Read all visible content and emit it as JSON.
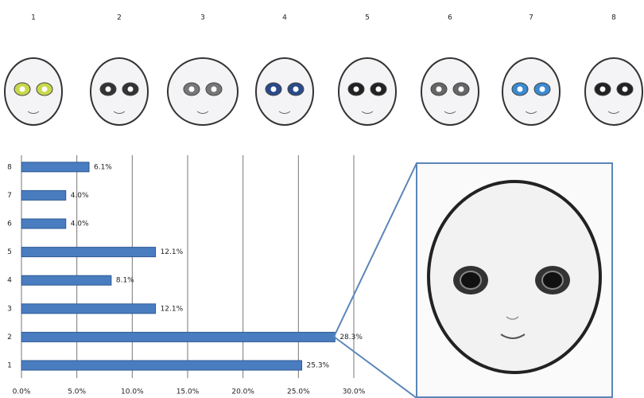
{
  "chart_data": {
    "type": "bar",
    "orientation": "horizontal",
    "categories": [
      "1",
      "2",
      "3",
      "4",
      "5",
      "6",
      "7",
      "8"
    ],
    "values": [
      25.3,
      28.3,
      12.1,
      8.1,
      12.1,
      4.0,
      4.0,
      6.1
    ],
    "value_labels": [
      "25.3%",
      "28.3%",
      "12.1%",
      "8.1%",
      "12.1%",
      "4.0%",
      "4.0%",
      "6.1%"
    ],
    "color": "#4a7cc0",
    "xlim": [
      0,
      30
    ],
    "xticks": [
      {
        "value": 0,
        "label": "0.0%"
      },
      {
        "value": 5,
        "label": "5.0%"
      },
      {
        "value": 10,
        "label": "10.0%"
      },
      {
        "value": 15,
        "label": "15.0%"
      },
      {
        "value": 20,
        "label": "20.0%"
      },
      {
        "value": 25,
        "label": "25.0%"
      },
      {
        "value": 30,
        "label": "30.0%"
      }
    ],
    "grid": true
  }
}
